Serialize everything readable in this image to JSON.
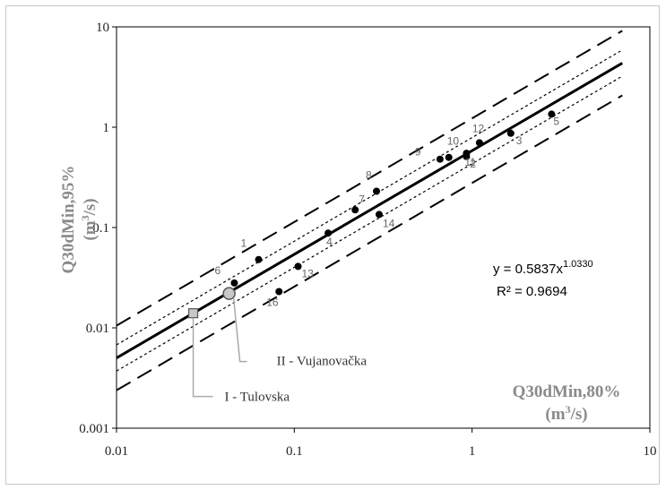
{
  "chart_data": {
    "type": "scatter",
    "x_scale": "log",
    "y_scale": "log",
    "xlim": [
      0.01,
      10
    ],
    "ylim": [
      0.001,
      10
    ],
    "x_ticks": [
      "0.01",
      "0.1",
      "1",
      "10"
    ],
    "y_ticks": [
      "0.001",
      "0.01",
      "0.1",
      "1",
      "10"
    ],
    "xlabel": "Q30dMin,80%",
    "xlabel_unit": "(m³/s)",
    "ylabel": "Q30dMin,95%",
    "ylabel_unit": "(m³/s)",
    "grid": false,
    "points": [
      {
        "label": "1",
        "x": 0.063,
        "y": 0.048
      },
      {
        "label": "2",
        "x": 0.93,
        "y": 0.51
      },
      {
        "label": "3",
        "x": 1.65,
        "y": 0.87
      },
      {
        "label": "4",
        "x": 0.155,
        "y": 0.088
      },
      {
        "label": "5",
        "x": 2.8,
        "y": 1.35
      },
      {
        "label": "6",
        "x": 0.046,
        "y": 0.028
      },
      {
        "label": "7",
        "x": 0.22,
        "y": 0.15
      },
      {
        "label": "8",
        "x": 0.29,
        "y": 0.23
      },
      {
        "label": "9",
        "x": 0.66,
        "y": 0.48
      },
      {
        "label": "10",
        "x": 0.74,
        "y": 0.5
      },
      {
        "label": "11",
        "x": 0.93,
        "y": 0.55
      },
      {
        "label": "12",
        "x": 1.1,
        "y": 0.7
      },
      {
        "label": "13",
        "x": 0.105,
        "y": 0.041
      },
      {
        "label": "14",
        "x": 0.3,
        "y": 0.135
      },
      {
        "label": "16",
        "x": 0.082,
        "y": 0.023
      }
    ],
    "special_points": [
      {
        "label": "I - Tulovska",
        "x": 0.027,
        "y": 0.014,
        "marker": "square"
      },
      {
        "label": "II - Vujanovačka",
        "x": 0.043,
        "y": 0.022,
        "marker": "circle"
      }
    ],
    "fit": {
      "equation_base": "y = 0.5837x",
      "equation_exp": "1.0330",
      "r2_text": "R² = 0.9694",
      "a": 0.5837,
      "b": 1.033
    },
    "bands": {
      "inner_factor": 1.35,
      "outer_factor": 2.1
    },
    "colors": {
      "points": "#000000",
      "fit_line": "#000000",
      "axis_title": "#8a8a8a",
      "special_fill": "#c8c8c8"
    }
  }
}
